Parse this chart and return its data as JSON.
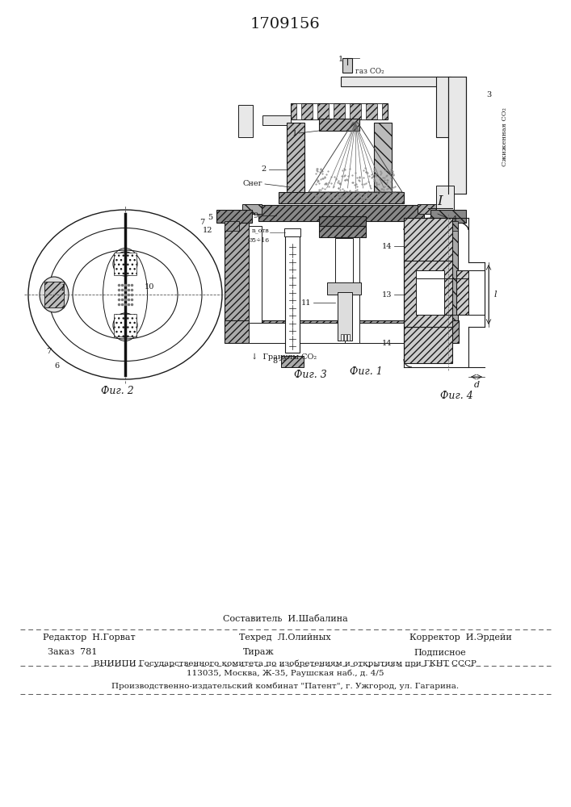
{
  "title": "1709156",
  "bg_color": "#ffffff",
  "lc": "#1a1a1a",
  "bottom_text": {
    "sestavitel": "Составитель  И.Шабалина",
    "redaktor": "Редактор  Н.Горват",
    "tehred": "Техред  Л.Олийных",
    "korrektor": "Корректор  И.Эрдейи",
    "zakaz": "Заказ  781",
    "tirazh": "Тираж",
    "podpisnoe": "Подписное",
    "vniip1": "ВНИИПИ Государственного комитета по изобретениям и открытиям при ГКНТ СССР",
    "vniip2": "113035, Москва, Ж-35, Раушская наб., д. 4/5",
    "kombinat": "Производственно-издательский комбинат \"Патент\", г. Ужгород, ул. Гагарина."
  }
}
